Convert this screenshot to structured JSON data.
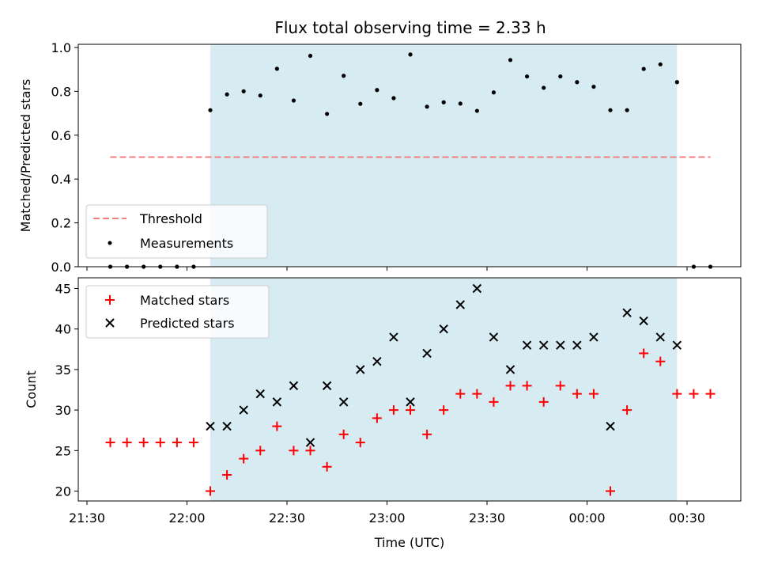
{
  "chart_data": [
    {
      "type": "scatter",
      "title": "Flux total observing time = 2.33 h",
      "xlabel": "",
      "ylabel": "Matched/Predicted stars",
      "ylim": [
        0,
        1.0
      ],
      "yticks": [
        0.0,
        0.2,
        0.4,
        0.6,
        0.8,
        1.0
      ],
      "yticklabels": [
        "0.0",
        "0.2",
        "0.4",
        "0.6",
        "0.8",
        "1.0"
      ],
      "observing_window": [
        "22:07",
        "00:27"
      ],
      "observing_window_color": "#add8e6",
      "threshold": {
        "name": "Threshold",
        "value": 0.5,
        "x": [
          "21:37",
          "00:37"
        ],
        "color": "#f08080",
        "style": "dashed"
      },
      "series": [
        {
          "name": "Measurements",
          "color": "#000000",
          "marker": "dot",
          "x": [
            "21:37",
            "21:42",
            "21:47",
            "21:52",
            "21:57",
            "22:02",
            "22:07",
            "22:12",
            "22:17",
            "22:22",
            "22:27",
            "22:32",
            "22:37",
            "22:42",
            "22:47",
            "22:52",
            "22:57",
            "23:02",
            "23:07",
            "23:12",
            "23:17",
            "23:22",
            "23:27",
            "23:32",
            "23:37",
            "23:42",
            "23:47",
            "23:52",
            "23:57",
            "00:02",
            "00:07",
            "00:12",
            "00:17",
            "00:22",
            "00:27",
            "00:32",
            "00:37"
          ],
          "y": [
            0,
            0,
            0,
            0,
            0,
            0,
            0.714,
            0.786,
            0.8,
            0.781,
            0.903,
            0.758,
            0.962,
            0.697,
            0.871,
            0.743,
            0.806,
            0.769,
            0.968,
            0.73,
            0.75,
            0.744,
            0.711,
            0.795,
            0.943,
            0.868,
            0.816,
            0.868,
            0.842,
            0.821,
            0.714,
            0.714,
            0.902,
            0.923,
            0.842,
            0,
            0
          ]
        }
      ],
      "legend": {
        "position": "lower-left",
        "entries": [
          "Threshold",
          "Measurements"
        ]
      }
    },
    {
      "type": "scatter",
      "title": "",
      "xlabel": "Time (UTC)",
      "ylabel": "Count",
      "ylim": [
        19,
        46
      ],
      "yticks": [
        20,
        25,
        30,
        35,
        40,
        45
      ],
      "yticklabels": [
        "20",
        "25",
        "30",
        "35",
        "40",
        "45"
      ],
      "xticklabels": [
        "21:30",
        "22:00",
        "22:30",
        "23:00",
        "23:30",
        "00:00",
        "00:30"
      ],
      "observing_window": [
        "22:07",
        "00:27"
      ],
      "observing_window_color": "#add8e6",
      "series": [
        {
          "name": "Matched stars",
          "color": "#ff0000",
          "marker": "plus",
          "x": [
            "21:37",
            "21:42",
            "21:47",
            "21:52",
            "21:57",
            "22:02",
            "22:07",
            "22:12",
            "22:17",
            "22:22",
            "22:27",
            "22:32",
            "22:37",
            "22:42",
            "22:47",
            "22:52",
            "22:57",
            "23:02",
            "23:07",
            "23:12",
            "23:17",
            "23:22",
            "23:27",
            "23:32",
            "23:37",
            "23:42",
            "23:47",
            "23:52",
            "23:57",
            "00:02",
            "00:07",
            "00:12",
            "00:17",
            "00:22",
            "00:27",
            "00:32",
            "00:37"
          ],
          "y": [
            26,
            26,
            26,
            26,
            26,
            26,
            20,
            22,
            24,
            25,
            28,
            25,
            25,
            23,
            27,
            26,
            29,
            30,
            30,
            27,
            30,
            32,
            32,
            31,
            33,
            33,
            31,
            33,
            32,
            32,
            20,
            30,
            37,
            36,
            32,
            32,
            32
          ]
        },
        {
          "name": "Predicted stars",
          "color": "#000000",
          "marker": "x",
          "x": [
            "22:07",
            "22:12",
            "22:17",
            "22:22",
            "22:27",
            "22:32",
            "22:37",
            "22:42",
            "22:47",
            "22:52",
            "22:57",
            "23:02",
            "23:07",
            "23:12",
            "23:17",
            "23:22",
            "23:27",
            "23:32",
            "23:37",
            "23:42",
            "23:47",
            "23:52",
            "23:57",
            "00:02",
            "00:07",
            "00:12",
            "00:17",
            "00:22",
            "00:27"
          ],
          "y": [
            28,
            28,
            30,
            32,
            31,
            33,
            26,
            33,
            31,
            35,
            36,
            39,
            31,
            37,
            40,
            43,
            45,
            39,
            35,
            38,
            38,
            38,
            38,
            39,
            28,
            42,
            41,
            39,
            38
          ]
        }
      ],
      "legend": {
        "position": "upper-left",
        "entries": [
          "Matched stars",
          "Predicted stars"
        ]
      }
    }
  ]
}
